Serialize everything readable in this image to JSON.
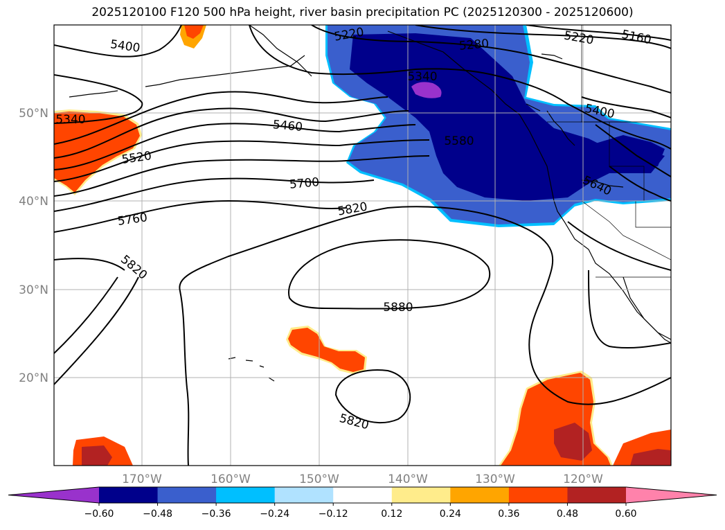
{
  "title": "2025120100 F120 500 hPa height, river basin precipitation PC (2025120300 - 2025120600)",
  "map": {
    "lat_labels": [
      "50°N",
      "40°N",
      "30°N",
      "20°N"
    ],
    "lon_labels": [
      "170°W",
      "160°W",
      "150°W",
      "140°W",
      "130°W",
      "120°W"
    ],
    "contour_labels": [
      "5400",
      "5220",
      "5280",
      "5220",
      "5160",
      "5340",
      "5340",
      "5460",
      "5400",
      "5520",
      "5580",
      "5700",
      "5640",
      "5820",
      "5760",
      "5820",
      "5880",
      "5820"
    ]
  },
  "colorbar": {
    "colors": [
      "#9932cc",
      "#00008b",
      "#3a5fcd",
      "#00bfff",
      "#b0e2ff",
      "#ffffff",
      "#ffec8b",
      "#ffa500",
      "#ff4500",
      "#b22222",
      "#ff82ab"
    ],
    "tick_labels": [
      "−0.60",
      "−0.48",
      "−0.36",
      "−0.24",
      "−0.12",
      "0.12",
      "0.24",
      "0.36",
      "0.48",
      "0.60"
    ]
  }
}
